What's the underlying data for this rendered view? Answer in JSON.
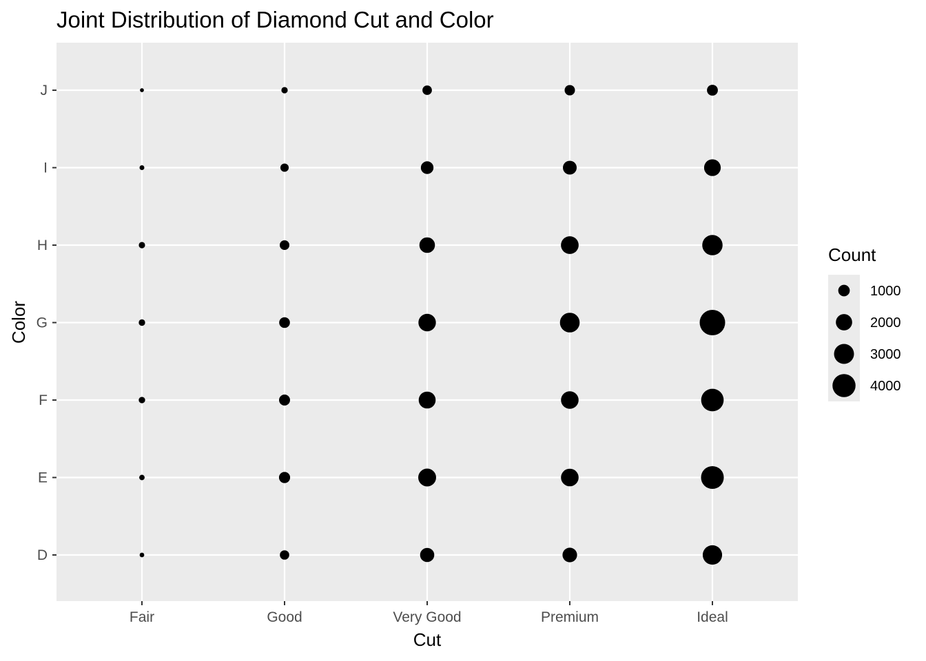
{
  "chart_data": {
    "type": "scatter",
    "title": "Joint Distribution of Diamond Cut and Color",
    "xlabel": "Cut",
    "ylabel": "Color",
    "x_categories": [
      "Fair",
      "Good",
      "Very Good",
      "Premium",
      "Ideal"
    ],
    "y_categories": [
      "D",
      "E",
      "F",
      "G",
      "H",
      "I",
      "J"
    ],
    "size_variable": "Count",
    "points": [
      {
        "cut": "Fair",
        "color": "D",
        "count": 163
      },
      {
        "cut": "Fair",
        "color": "E",
        "count": 224
      },
      {
        "cut": "Fair",
        "color": "F",
        "count": 312
      },
      {
        "cut": "Fair",
        "color": "G",
        "count": 314
      },
      {
        "cut": "Fair",
        "color": "H",
        "count": 303
      },
      {
        "cut": "Fair",
        "color": "I",
        "count": 175
      },
      {
        "cut": "Fair",
        "color": "J",
        "count": 119
      },
      {
        "cut": "Good",
        "color": "D",
        "count": 662
      },
      {
        "cut": "Good",
        "color": "E",
        "count": 933
      },
      {
        "cut": "Good",
        "color": "F",
        "count": 909
      },
      {
        "cut": "Good",
        "color": "G",
        "count": 871
      },
      {
        "cut": "Good",
        "color": "H",
        "count": 702
      },
      {
        "cut": "Good",
        "color": "I",
        "count": 522
      },
      {
        "cut": "Good",
        "color": "J",
        "count": 307
      },
      {
        "cut": "Very Good",
        "color": "D",
        "count": 1513
      },
      {
        "cut": "Very Good",
        "color": "E",
        "count": 2400
      },
      {
        "cut": "Very Good",
        "color": "F",
        "count": 2164
      },
      {
        "cut": "Very Good",
        "color": "G",
        "count": 2299
      },
      {
        "cut": "Very Good",
        "color": "H",
        "count": 1824
      },
      {
        "cut": "Very Good",
        "color": "I",
        "count": 1204
      },
      {
        "cut": "Very Good",
        "color": "J",
        "count": 678
      },
      {
        "cut": "Premium",
        "color": "D",
        "count": 1603
      },
      {
        "cut": "Premium",
        "color": "E",
        "count": 2337
      },
      {
        "cut": "Premium",
        "color": "F",
        "count": 2331
      },
      {
        "cut": "Premium",
        "color": "G",
        "count": 2924
      },
      {
        "cut": "Premium",
        "color": "H",
        "count": 2360
      },
      {
        "cut": "Premium",
        "color": "I",
        "count": 1428
      },
      {
        "cut": "Premium",
        "color": "J",
        "count": 808
      },
      {
        "cut": "Ideal",
        "color": "D",
        "count": 2834
      },
      {
        "cut": "Ideal",
        "color": "E",
        "count": 3903
      },
      {
        "cut": "Ideal",
        "color": "F",
        "count": 3826
      },
      {
        "cut": "Ideal",
        "color": "G",
        "count": 4884
      },
      {
        "cut": "Ideal",
        "color": "H",
        "count": 3115
      },
      {
        "cut": "Ideal",
        "color": "I",
        "count": 2093
      },
      {
        "cut": "Ideal",
        "color": "J",
        "count": 896
      }
    ],
    "legend": {
      "title": "Count",
      "position": "right",
      "values": [
        1000,
        2000,
        3000,
        4000
      ],
      "labels": [
        "1000",
        "2000",
        "3000",
        "4000"
      ]
    },
    "grid": true,
    "colors": {
      "panel_background": "#ebebeb",
      "grid_line": "#ffffff",
      "point": "#000000",
      "tick_label": "#4d4d4d",
      "tick_mark": "#333333"
    }
  }
}
